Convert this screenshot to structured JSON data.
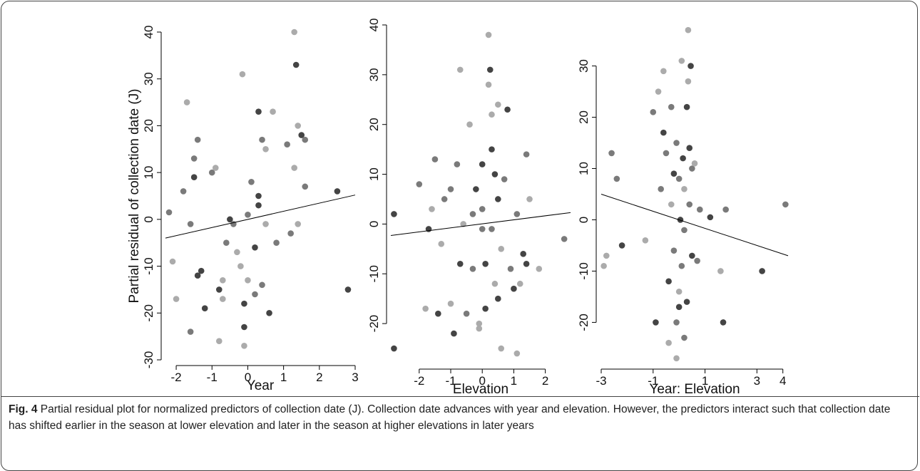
{
  "chart_data": [
    {
      "type": "scatter",
      "x_label": "Year",
      "y_label": "Partial residual of collection date (J)",
      "xlim": [
        -2.3,
        3.0
      ],
      "ylim": [
        -30,
        40
      ],
      "xticks": [
        -2,
        -1,
        0,
        1,
        2,
        3
      ],
      "yticks": [
        -30,
        -20,
        -10,
        0,
        10,
        20,
        30,
        40
      ],
      "x": [
        -2.2,
        -2.1,
        -2.0,
        -1.8,
        -1.7,
        -1.6,
        -1.5,
        -1.5,
        -1.4,
        -1.4,
        -1.3,
        -1.2,
        -1.0,
        -0.9,
        -0.8,
        -0.8,
        -0.7,
        -0.6,
        -0.5,
        -0.4,
        -0.3,
        -0.2,
        -0.15,
        -0.1,
        -0.1,
        0.0,
        0.0,
        0.1,
        0.2,
        0.2,
        0.3,
        0.3,
        0.4,
        0.4,
        0.5,
        0.5,
        0.6,
        0.7,
        0.8,
        1.1,
        1.2,
        1.3,
        1.35,
        1.4,
        1.4,
        1.5,
        1.6,
        1.6,
        2.5,
        2.8,
        -0.1,
        0.3,
        1.3,
        -1.6,
        -0.7
      ],
      "values": [
        1.5,
        -9,
        -17,
        6,
        25,
        -24,
        13,
        9,
        -12,
        17,
        -11,
        -19,
        10,
        11,
        -26,
        -15,
        -17,
        -5,
        0,
        -1,
        -7,
        -10,
        31,
        -18,
        -23,
        -13,
        1,
        8,
        -6,
        -16,
        23,
        5,
        -14,
        17,
        15,
        -1,
        -20,
        23,
        -5,
        16,
        -3,
        40,
        33,
        20,
        -1,
        18,
        17,
        7,
        6,
        -15,
        -27,
        3,
        11,
        -1,
        -13
      ],
      "colors": [
        "#7a7a7a",
        "#ababab",
        "#ababab",
        "#7a7a7a",
        "#ababab",
        "#7a7a7a",
        "#7a7a7a",
        "#444444",
        "#444444",
        "#7a7a7a",
        "#444444",
        "#444444",
        "#7a7a7a",
        "#ababab",
        "#ababab",
        "#444444",
        "#ababab",
        "#7a7a7a",
        "#444444",
        "#7a7a7a",
        "#ababab",
        "#ababab",
        "#ababab",
        "#444444",
        "#444444",
        "#ababab",
        "#7a7a7a",
        "#7a7a7a",
        "#444444",
        "#7a7a7a",
        "#444444",
        "#444444",
        "#7a7a7a",
        "#7a7a7a",
        "#ababab",
        "#ababab",
        "#444444",
        "#ababab",
        "#7a7a7a",
        "#7a7a7a",
        "#7a7a7a",
        "#ababab",
        "#444444",
        "#ababab",
        "#ababab",
        "#444444",
        "#7a7a7a",
        "#7a7a7a",
        "#444444",
        "#444444",
        "#ababab",
        "#444444",
        "#ababab",
        "#7a7a7a",
        "#ababab"
      ],
      "trend": {
        "x": [
          -2.3,
          3.0
        ],
        "values": [
          -4,
          5.2
        ]
      }
    },
    {
      "type": "scatter",
      "x_label": "Elevation",
      "xlim": [
        -2.9,
        2.8
      ],
      "ylim": [
        -28,
        40
      ],
      "xticks": [
        -2,
        -1,
        0,
        1,
        2
      ],
      "yticks": [
        -20,
        -10,
        0,
        10,
        20,
        30,
        40
      ],
      "x": [
        -2.8,
        -2.8,
        -2.0,
        -1.8,
        -1.7,
        -1.6,
        -1.5,
        -1.4,
        -1.3,
        -1.2,
        -1.0,
        -1.0,
        -0.9,
        -0.8,
        -0.7,
        -0.7,
        -0.6,
        -0.5,
        -0.4,
        -0.3,
        -0.2,
        -0.1,
        -0.1,
        0.0,
        0.0,
        0.1,
        0.1,
        0.2,
        0.2,
        0.25,
        0.3,
        0.3,
        0.3,
        0.4,
        0.4,
        0.5,
        0.5,
        0.5,
        0.6,
        0.7,
        0.8,
        0.9,
        1.0,
        1.1,
        1.1,
        1.3,
        1.4,
        1.4,
        1.5,
        1.8,
        2.6,
        0.0,
        0.6,
        -0.3,
        1.2
      ],
      "values": [
        2,
        -25,
        8,
        -17,
        -1,
        3,
        13,
        -18,
        -4,
        5,
        -16,
        7,
        -22,
        12,
        31,
        -8,
        0,
        -18,
        20,
        -9,
        7,
        -20,
        -21,
        3,
        12,
        -8,
        -17,
        38,
        28,
        31,
        15,
        22,
        -1,
        10,
        -12,
        5,
        -15,
        24,
        -25,
        9,
        23,
        -9,
        -13,
        -26,
        2,
        -6,
        14,
        -8,
        5,
        -9,
        -3,
        -1,
        -5,
        2,
        -12
      ],
      "colors": [
        "#444444",
        "#444444",
        "#7a7a7a",
        "#ababab",
        "#444444",
        "#ababab",
        "#7a7a7a",
        "#444444",
        "#ababab",
        "#7a7a7a",
        "#ababab",
        "#7a7a7a",
        "#444444",
        "#7a7a7a",
        "#ababab",
        "#444444",
        "#ababab",
        "#7a7a7a",
        "#ababab",
        "#7a7a7a",
        "#444444",
        "#ababab",
        "#ababab",
        "#7a7a7a",
        "#444444",
        "#444444",
        "#444444",
        "#ababab",
        "#ababab",
        "#444444",
        "#444444",
        "#ababab",
        "#7a7a7a",
        "#444444",
        "#ababab",
        "#444444",
        "#444444",
        "#ababab",
        "#ababab",
        "#7a7a7a",
        "#444444",
        "#7a7a7a",
        "#444444",
        "#ababab",
        "#7a7a7a",
        "#444444",
        "#7a7a7a",
        "#444444",
        "#ababab",
        "#ababab",
        "#7a7a7a",
        "#7a7a7a",
        "#ababab",
        "#7a7a7a",
        "#ababab"
      ],
      "trend": {
        "x": [
          -2.9,
          2.8
        ],
        "values": [
          -2.3,
          2.3
        ]
      }
    },
    {
      "type": "scatter",
      "x_label": "Year: Elevation",
      "xlim": [
        -3.0,
        4.2
      ],
      "ylim": [
        -28,
        38
      ],
      "xticks": [
        -3,
        -1,
        1,
        3,
        4
      ],
      "yticks": [
        -20,
        -10,
        0,
        10,
        20,
        30
      ],
      "x": [
        -2.9,
        -2.8,
        -2.6,
        -2.4,
        -2.2,
        -1.3,
        -1.0,
        -0.9,
        -0.8,
        -0.7,
        -0.6,
        -0.6,
        -0.5,
        -0.4,
        -0.4,
        -0.3,
        -0.3,
        -0.2,
        -0.1,
        -0.1,
        0.0,
        0.0,
        0.05,
        0.1,
        0.1,
        0.15,
        0.2,
        0.2,
        0.3,
        0.3,
        0.35,
        0.35,
        0.4,
        0.4,
        0.45,
        0.5,
        0.5,
        0.6,
        0.7,
        0.8,
        1.2,
        1.6,
        1.7,
        1.8,
        3.2,
        4.1,
        -0.1,
        0.0,
        0.2,
        -0.2
      ],
      "values": [
        -9,
        -7,
        13,
        8,
        -5,
        -4,
        21,
        -20,
        25,
        6,
        17,
        29,
        13,
        -12,
        -24,
        3,
        22,
        -6,
        -27,
        -20,
        -17,
        8,
        0,
        -9,
        31,
        12,
        -2,
        -23,
        22,
        -16,
        37,
        27,
        14,
        3,
        30,
        -7,
        10,
        11,
        -8,
        2,
        0.5,
        -10,
        -20,
        2,
        -10,
        3,
        15,
        -14,
        6,
        9
      ],
      "colors": [
        "#ababab",
        "#ababab",
        "#7a7a7a",
        "#7a7a7a",
        "#444444",
        "#ababab",
        "#7a7a7a",
        "#444444",
        "#ababab",
        "#7a7a7a",
        "#444444",
        "#ababab",
        "#7a7a7a",
        "#444444",
        "#ababab",
        "#ababab",
        "#7a7a7a",
        "#7a7a7a",
        "#ababab",
        "#7a7a7a",
        "#444444",
        "#7a7a7a",
        "#444444",
        "#7a7a7a",
        "#ababab",
        "#444444",
        "#7a7a7a",
        "#7a7a7a",
        "#444444",
        "#444444",
        "#ababab",
        "#ababab",
        "#444444",
        "#7a7a7a",
        "#444444",
        "#444444",
        "#7a7a7a",
        "#ababab",
        "#7a7a7a",
        "#7a7a7a",
        "#444444",
        "#ababab",
        "#444444",
        "#7a7a7a",
        "#444444",
        "#7a7a7a",
        "#7a7a7a",
        "#ababab",
        "#ababab",
        "#444444"
      ],
      "trend": {
        "x": [
          -3.0,
          4.2
        ],
        "values": [
          5,
          -7
        ]
      }
    }
  ],
  "caption": {
    "label": "Fig. 4",
    "text": "Partial residual plot for normalized predictors of collection date (J). Collection date advances with year and elevation. However, the predictors interact such that collection date has shifted earlier in the season at lower elevation and later in the season at higher elevations in later years"
  }
}
